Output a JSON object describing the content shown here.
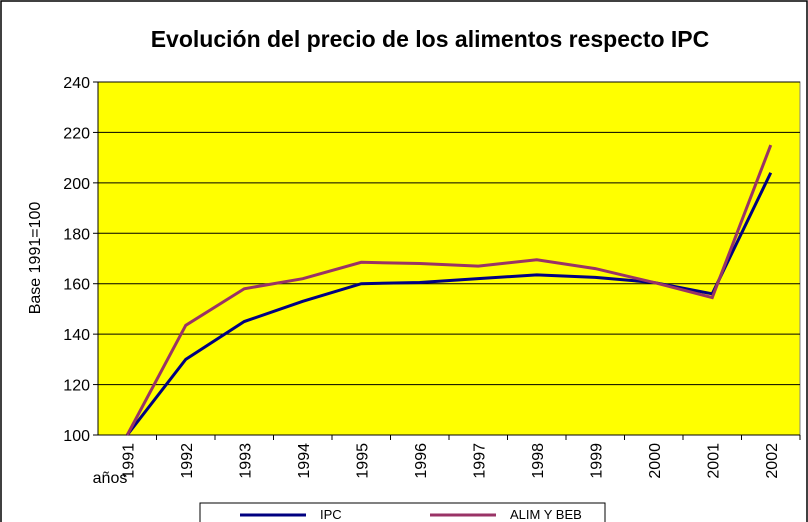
{
  "chart_data": {
    "type": "line",
    "title": "Evolución del precio de los alimentos respecto IPC",
    "y_label": "Base 1991=100",
    "x_label": "años",
    "categories": [
      "1991",
      "1992",
      "1993",
      "1994",
      "1995",
      "1996",
      "1997",
      "1998",
      "1999",
      "2000",
      "2001",
      "2002"
    ],
    "series": [
      {
        "name": "IPC",
        "color": "#000080",
        "values": [
          100,
          130,
          145,
          153,
          160,
          160.5,
          162,
          163.5,
          162.5,
          160.5,
          156,
          204
        ]
      },
      {
        "name": "ALIM Y BEB",
        "color": "#993366",
        "values": [
          100,
          143.5,
          158,
          162,
          168.5,
          168,
          167,
          169.5,
          166,
          160.5,
          154.5,
          215
        ]
      }
    ],
    "ylim": [
      100,
      240
    ],
    "yticks": [
      100,
      120,
      140,
      160,
      180,
      200,
      220,
      240
    ],
    "grid": true,
    "plot_color": "#ffff00",
    "legend": "bottom"
  }
}
